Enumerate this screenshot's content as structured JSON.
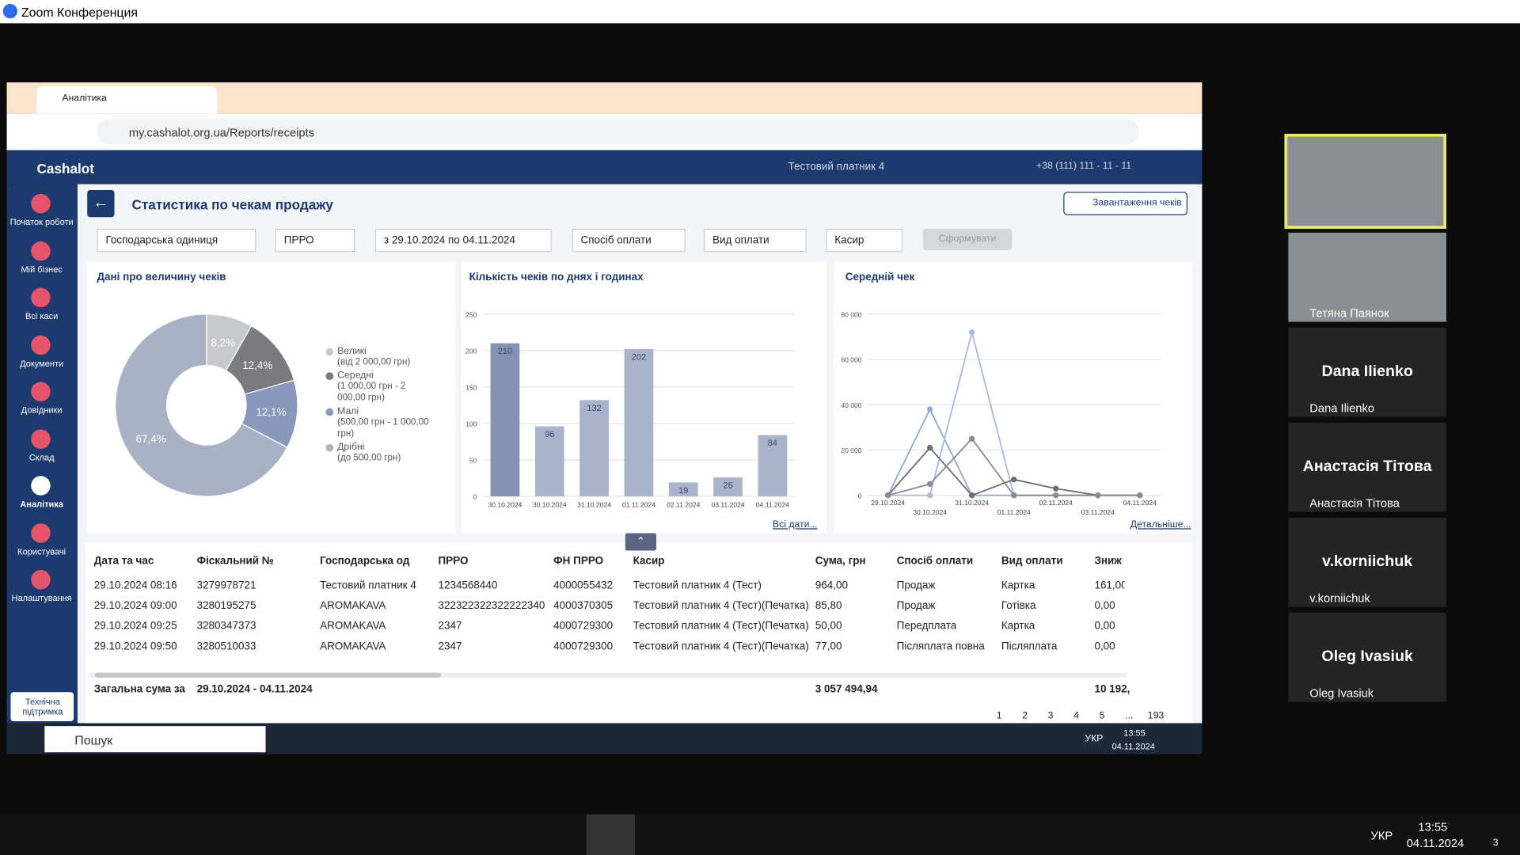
{
  "zoom": {
    "title": "Zoom Конференция"
  },
  "browser": {
    "tab": "Аналітика",
    "url": "my.cashalot.org.ua/Reports/receipts"
  },
  "app": {
    "brand": "Cashalot",
    "payer": "Тестовий платник 4",
    "phone": "+38 (111) 111 - 11 - 11",
    "menu": [
      "Початок роботи",
      "Мій бізнес",
      "Всі каси",
      "Документи",
      "Довідники",
      "Склад",
      "Аналітика",
      "Користувачі",
      "Налаштування"
    ],
    "support": "Технічна підтримка"
  },
  "page": {
    "title": "Статистика по чекам продажу",
    "download": "Завантаження чеків",
    "filters": [
      "Господарська одиниця",
      "ПРРО",
      "з 29.10.2024 по 04.11.2024",
      "Спосіб оплати",
      "Вид оплати",
      "Касир"
    ],
    "submit": "Сформувати"
  },
  "chart_data": [
    {
      "type": "pie",
      "title": "Дані про величину чеків",
      "categories": [
        "Великі",
        "Середні",
        "Малі",
        "Дрібні"
      ],
      "notes": [
        "(від 2 000,00 грн)",
        "(1 000,00 грн - 2 000,00 грн)",
        "(500,00 грн - 1 000,00 грн)",
        "(до 500,00 грн)"
      ],
      "values": [
        8.2,
        12.4,
        12.1,
        67.4
      ],
      "value_labels": [
        "8,2%",
        "12,4%",
        "12,1%",
        "67,4%"
      ],
      "colors": [
        "#c8c9cd",
        "#7a7a7f",
        "#8898bb",
        "#a9b1c4"
      ]
    },
    {
      "type": "bar",
      "title": "Кількість чеків по днях і годинах",
      "categories": [
        "30.10.2024",
        "30.10.2024",
        "31.10.2024",
        "01.11.2024",
        "02.11.2024",
        "03.11.2024",
        "04.11.2024"
      ],
      "values": [
        210,
        96,
        132,
        202,
        19,
        26,
        84
      ],
      "colors": [
        "#8593b2",
        "#a9b3c9",
        "#a9b3c9",
        "#a9b3c9",
        "#a9b3c9",
        "#a9b3c9",
        "#a9b3c9"
      ],
      "ylim": [
        0,
        250
      ],
      "yticks": [
        0,
        50,
        100,
        150,
        200,
        250
      ],
      "grid": true,
      "link": "Всі дати..."
    },
    {
      "type": "line",
      "title": "Середній чек",
      "categories": [
        "29.10.2024",
        "30.10.2024",
        "31.10.2024",
        "01.11.2024",
        "02.11.2024",
        "03.11.2024",
        "04.11.2024"
      ],
      "ylim": [
        0,
        80000
      ],
      "yticks": [
        0,
        {
          "value": 20000,
          "label": "20 000"
        },
        {
          "value": 40000,
          "label": "40 000"
        },
        {
          "value": 60000,
          "label": "60 000"
        },
        {
          "value": 80000,
          "label": "80 000"
        }
      ],
      "grid": true,
      "series": [
        {
          "color": "#95a8d0",
          "values": [
            0,
            38000,
            0,
            0,
            0,
            0,
            0
          ]
        },
        {
          "color": "#aab9dc",
          "values": [
            0,
            0,
            72000,
            0,
            0,
            0,
            0
          ]
        },
        {
          "color": "#6d6d72",
          "values": [
            0,
            21000,
            0,
            7000,
            3000,
            0,
            0
          ]
        },
        {
          "color": "#8a8a8f",
          "values": [
            0,
            5000,
            25000,
            0,
            0,
            0,
            0
          ]
        }
      ],
      "link": "Детальніше..."
    }
  ],
  "table": {
    "headers": [
      "Дата та час",
      "Фіскальний №",
      "Господарська од",
      "ПРРО",
      "ФН ПРРО",
      "Касир",
      "Сума, грн",
      "Спосіб оплати",
      "Вид оплати",
      "Знижк"
    ],
    "rows": [
      [
        "29.10.2024 08:16",
        "3279978721",
        "Тестовий платник 4",
        "1234568440",
        "4000055432",
        "Тестовий платник 4 (Тест)",
        "964,00",
        "Продаж",
        "Картка",
        "161,00"
      ],
      [
        "29.10.2024 09:00",
        "3280195275",
        "AROMAKAVA",
        "322322322322222340",
        "4000370305",
        "Тестовий платник 4 (Тест)(Печатка)",
        "85,80",
        "Продаж",
        "Готівка",
        "0,00"
      ],
      [
        "29.10.2024 09:25",
        "3280347373",
        "AROMAKAVA",
        "2347",
        "4000729300",
        "Тестовий платник 4 (Тест)(Печатка)",
        "50,00",
        "Передплата",
        "Картка",
        "0,00"
      ],
      [
        "29.10.2024 09:50",
        "3280510033",
        "AROMAKAVA",
        "2347",
        "4000729300",
        "Тестовий платник 4 (Тест)(Печатка)",
        "77,00",
        "Післяплата повна",
        "Післяплата",
        "0,00"
      ]
    ],
    "total": {
      "label": "Загальна сума за",
      "period": "29.10.2024 - 04.11.2024",
      "sum": "3 057 494,94",
      "discount": "10 192,"
    }
  },
  "pagination": {
    "pages": [
      "1",
      "2",
      "3",
      "4",
      "5",
      "...",
      "193"
    ]
  },
  "participants": [
    "Тетяна Паянок",
    "Dana Ilienko",
    "Анастасія Тітова",
    "v.korniichuk",
    "Oleg Ivasiuk"
  ],
  "taskbar": {
    "search": "Пошук",
    "lang": "УКР",
    "time": "13:55",
    "date": "04.11.2024"
  },
  "system_tray": {
    "lang": "УКР",
    "time": "13:55",
    "date": "04.11.2024",
    "notifications": "3"
  }
}
